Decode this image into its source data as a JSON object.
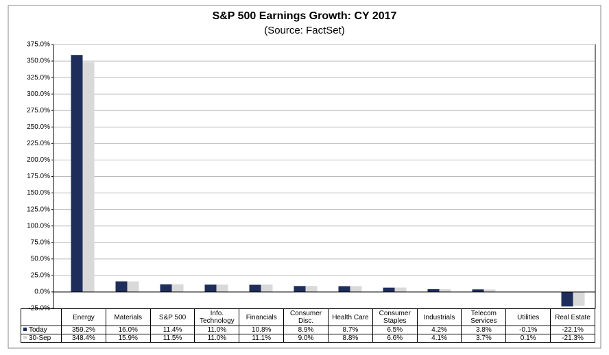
{
  "chart_data": {
    "type": "bar",
    "title": "S&P 500 Earnings Growth: CY 2017",
    "subtitle": "(Source: FactSet)",
    "categories": [
      "Energy",
      "Materials",
      "S&P 500",
      "Info. Technology",
      "Financials",
      "Consumer Disc.",
      "Health Care",
      "Consumer Staples",
      "Industrials",
      "Telecom Services",
      "Utilities",
      "Real Estate"
    ],
    "series": [
      {
        "name": "Today",
        "color": "#1f2d5a",
        "values": [
          359.2,
          16.0,
          11.4,
          11.0,
          10.8,
          8.9,
          8.7,
          6.5,
          4.2,
          3.8,
          -0.1,
          -22.1
        ],
        "value_labels": [
          "359.2%",
          "16.0%",
          "11.4%",
          "11.0%",
          "10.8%",
          "8.9%",
          "8.7%",
          "6.5%",
          "4.2%",
          "3.8%",
          "-0.1%",
          "-22.1%"
        ]
      },
      {
        "name": "30-Sep",
        "color": "#d9d9d9",
        "values": [
          348.4,
          15.9,
          11.5,
          11.0,
          11.1,
          9.0,
          8.8,
          6.6,
          4.1,
          3.7,
          0.1,
          -21.3
        ],
        "value_labels": [
          "348.4%",
          "15.9%",
          "11.5%",
          "11.0%",
          "11.1%",
          "9.0%",
          "8.8%",
          "6.6%",
          "4.1%",
          "3.7%",
          "0.1%",
          "-21.3%"
        ]
      }
    ],
    "ylim": [
      -25,
      375
    ],
    "yticks": [
      {
        "value": -25,
        "label": "-25.0%"
      },
      {
        "value": 0,
        "label": "0.0%"
      },
      {
        "value": 25,
        "label": "25.0%"
      },
      {
        "value": 50,
        "label": "50.0%"
      },
      {
        "value": 75,
        "label": "75.0%"
      },
      {
        "value": 100,
        "label": "100.0%"
      },
      {
        "value": 125,
        "label": "125.0%"
      },
      {
        "value": 150,
        "label": "150.0%"
      },
      {
        "value": 175,
        "label": "175.0%"
      },
      {
        "value": 200,
        "label": "200.0%"
      },
      {
        "value": 225,
        "label": "225.0%"
      },
      {
        "value": 250,
        "label": "250.0%"
      },
      {
        "value": 275,
        "label": "275.0%"
      },
      {
        "value": 300,
        "label": "300.0%"
      },
      {
        "value": 325,
        "label": "325.0%"
      },
      {
        "value": 350,
        "label": "350.0%"
      },
      {
        "value": 375,
        "label": "375.0%"
      }
    ],
    "grid": true
  }
}
